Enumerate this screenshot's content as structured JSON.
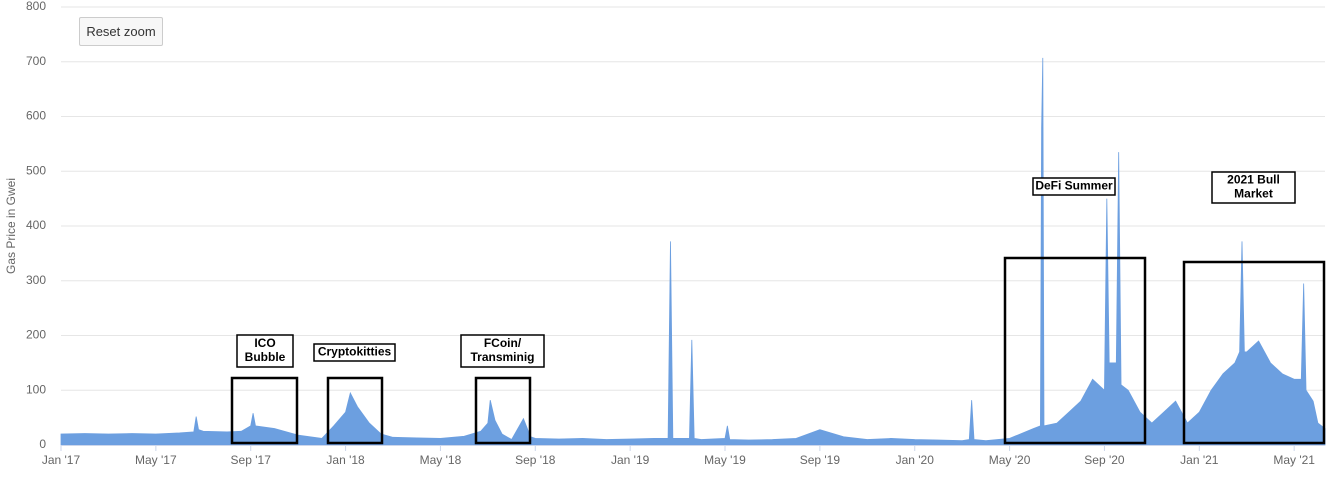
{
  "reset_button": "Reset zoom",
  "chart_data": {
    "type": "area",
    "y_label": "Gas Price in Gwei",
    "color": "#6c9fe0",
    "grid": true,
    "x": [
      0,
      1,
      2,
      3,
      4,
      5,
      5.6,
      5.7,
      5.8,
      6,
      7,
      7.6,
      8,
      8.1,
      8.2,
      9,
      10,
      10.5,
      11,
      11.5,
      12,
      12.2,
      12.5,
      13,
      13.5,
      14,
      15,
      16,
      17,
      17.7,
      18,
      18.1,
      18.3,
      18.6,
      19,
      19.5,
      19.8,
      20,
      21,
      22,
      23,
      24,
      25,
      25.6,
      25.7,
      25.8,
      26.5,
      26.6,
      26.7,
      27,
      28,
      28.1,
      28.2,
      29,
      30,
      31,
      32,
      33,
      34,
      35,
      36,
      37,
      38,
      38.3,
      38.4,
      38.5,
      39,
      40,
      41,
      41.3,
      41.35,
      41.4,
      41.45,
      42,
      42.5,
      43,
      43.5,
      44,
      44.1,
      44.2,
      44.5,
      44.6,
      44.7,
      45,
      45.5,
      46,
      46.5,
      47,
      47.5,
      48,
      48.5,
      49,
      49.5,
      49.7,
      49.8,
      49.9,
      50,
      50.5,
      51,
      51.5,
      52,
      52.3,
      52.4,
      52.5,
      52.8,
      53,
      53.3
    ],
    "series": [
      {
        "values": [
          20,
          21,
          20,
          21,
          20,
          22,
          24,
          52,
          28,
          25,
          24,
          25,
          35,
          58,
          35,
          30,
          18,
          15,
          12,
          35,
          60,
          95,
          70,
          40,
          20,
          14,
          13,
          12,
          16,
          25,
          40,
          82,
          45,
          20,
          10,
          48,
          15,
          12,
          11,
          12,
          10,
          11,
          12,
          12,
          372,
          12,
          12,
          192,
          12,
          10,
          12,
          35,
          10,
          9,
          10,
          12,
          28,
          15,
          10,
          12,
          10,
          9,
          8,
          10,
          82,
          10,
          8,
          12,
          30,
          35,
          580,
          707,
          35,
          40,
          60,
          80,
          120,
          100,
          450,
          150,
          150,
          535,
          110,
          100,
          60,
          40,
          60,
          80,
          40,
          60,
          100,
          130,
          150,
          170,
          372,
          170,
          170,
          190,
          150,
          130,
          120,
          120,
          295,
          100,
          80,
          40,
          30
        ]
      }
    ],
    "xlim": [
      0,
      53.3
    ],
    "ylim": [
      0,
      800
    ],
    "xticks": [
      {
        "value": 0,
        "label": "Jan '17"
      },
      {
        "value": 4,
        "label": "May '17"
      },
      {
        "value": 8,
        "label": "Sep '17"
      },
      {
        "value": 12,
        "label": "Jan '18"
      },
      {
        "value": 16,
        "label": "May '18"
      },
      {
        "value": 20,
        "label": "Sep '18"
      },
      {
        "value": 24,
        "label": "Jan '19"
      },
      {
        "value": 28,
        "label": "May '19"
      },
      {
        "value": 32,
        "label": "Sep '19"
      },
      {
        "value": 36,
        "label": "Jan '20"
      },
      {
        "value": 40,
        "label": "May '20"
      },
      {
        "value": 44,
        "label": "Sep '20"
      },
      {
        "value": 48,
        "label": "Jan '21"
      },
      {
        "value": 52,
        "label": "May '21"
      }
    ],
    "yticks": [
      0,
      100,
      200,
      300,
      400,
      500,
      600,
      700,
      800
    ],
    "annotations": [
      {
        "lines": [
          "ICO",
          "Bubble"
        ]
      },
      {
        "lines": [
          "Cryptokitties"
        ]
      },
      {
        "lines": [
          "FCoin/",
          "Transminig"
        ]
      },
      {
        "lines": [
          "DeFi Summer"
        ]
      },
      {
        "lines": [
          "2021 Bull",
          "Market"
        ]
      }
    ]
  }
}
